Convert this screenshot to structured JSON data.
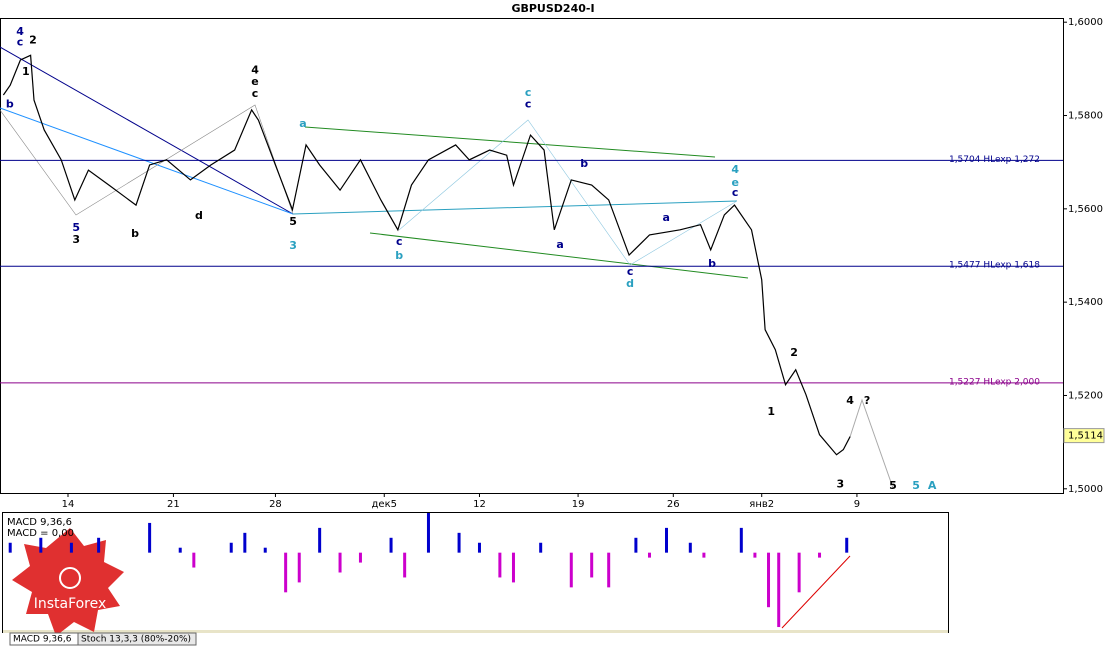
{
  "chart_data": {
    "type": "line",
    "title": "GBPUSD240-I",
    "color": "#000000",
    "xlim": [
      0,
      312.6
    ],
    "ylim": [
      1.4991,
      1.6009
    ],
    "yticks": [
      {
        "value": 1.6,
        "label": "1,6000"
      },
      {
        "value": 1.58,
        "label": "1,5800"
      },
      {
        "value": 1.56,
        "label": "1,5600"
      },
      {
        "value": 1.54,
        "label": "1,5400"
      },
      {
        "value": 1.52,
        "label": "1,5200"
      },
      {
        "value": 1.5,
        "label": "1,5000"
      }
    ],
    "xticks": [
      {
        "value": 20,
        "label": "14"
      },
      {
        "value": 51,
        "label": "21"
      },
      {
        "value": 81,
        "label": "28"
      },
      {
        "value": 113,
        "label": "дек5"
      },
      {
        "value": 141,
        "label": "12"
      },
      {
        "value": 170,
        "label": "19"
      },
      {
        "value": 198,
        "label": "26"
      },
      {
        "value": 224,
        "label": "янв2"
      },
      {
        "value": 252,
        "label": "9"
      }
    ],
    "x": [
      1,
      3,
      6,
      9,
      10,
      13,
      18,
      22,
      26,
      32,
      40,
      44,
      49,
      56,
      62,
      69,
      74,
      76,
      81,
      86,
      90,
      94,
      100,
      106,
      112,
      117,
      121,
      126,
      134,
      138,
      144,
      149,
      151,
      156,
      160,
      163,
      168,
      174,
      179,
      185,
      191,
      200,
      206,
      209,
      213,
      216,
      221,
      224,
      225,
      228,
      231,
      234,
      237,
      241,
      246,
      248,
      250
    ],
    "series": [
      {
        "name": "GBPUSD240-I",
        "color": "#000000",
        "values": [
          1.5844,
          1.5865,
          1.5919,
          1.5929,
          1.5833,
          1.5769,
          1.5705,
          1.5619,
          1.5683,
          1.5651,
          1.5608,
          1.5694,
          1.5705,
          1.5662,
          1.5694,
          1.5726,
          1.5812,
          1.579,
          1.5694,
          1.5598,
          1.5737,
          1.5694,
          1.564,
          1.5705,
          1.5619,
          1.5555,
          1.5651,
          1.5705,
          1.5737,
          1.5705,
          1.5726,
          1.5715,
          1.5651,
          1.5758,
          1.5726,
          1.5555,
          1.5662,
          1.5651,
          1.5619,
          1.5501,
          1.5544,
          1.5555,
          1.5566,
          1.5512,
          1.5587,
          1.5608,
          1.5555,
          1.5448,
          1.5341,
          1.5298,
          1.5223,
          1.5255,
          1.5202,
          1.5116,
          1.5073,
          1.5084,
          1.5112
        ]
      }
    ],
    "current": {
      "value": 1.5114,
      "label": "1,5114"
    },
    "levels": [
      {
        "value": 1.5704,
        "label": "1,5704 HLexp 1,272",
        "color": "#00008b"
      },
      {
        "value": 1.5477,
        "label": "1,5477 HLexp 1,618",
        "color": "#00008b"
      },
      {
        "value": 1.5227,
        "label": "1,5227 HLexp 2,000",
        "color": "#8b008b"
      }
    ],
    "annotations": [
      {
        "text": "4",
        "x": 5.9,
        "y": 1.5979,
        "color": "#00008b"
      },
      {
        "text": "c",
        "x": 5.9,
        "y": 1.5957,
        "color": "#00008b"
      },
      {
        "text": "2",
        "x": 9.7,
        "y": 1.5961,
        "color": "#000000"
      },
      {
        "text": "1",
        "x": 7.6,
        "y": 1.5893,
        "color": "#000000"
      },
      {
        "text": "b",
        "x": 2.9,
        "y": 1.5824,
        "color": "#00008b"
      },
      {
        "text": "5",
        "x": 22.4,
        "y": 1.5559,
        "color": "#00008b"
      },
      {
        "text": "3",
        "x": 22.4,
        "y": 1.5533,
        "color": "#000000"
      },
      {
        "text": "b",
        "x": 39.7,
        "y": 1.5546,
        "color": "#000000"
      },
      {
        "text": "d",
        "x": 58.5,
        "y": 1.5585,
        "color": "#000000"
      },
      {
        "text": "4",
        "x": 75,
        "y": 1.5897,
        "color": "#000000"
      },
      {
        "text": "e",
        "x": 75,
        "y": 1.5872,
        "color": "#000000"
      },
      {
        "text": "c",
        "x": 75,
        "y": 1.5846,
        "color": "#000000"
      },
      {
        "text": "5",
        "x": 86.2,
        "y": 1.5572,
        "color": "#000000"
      },
      {
        "text": "3",
        "x": 86.2,
        "y": 1.552,
        "color": "#2aa0c0"
      },
      {
        "text": "a",
        "x": 89.1,
        "y": 1.5782,
        "color": "#2aa0c0"
      },
      {
        "text": "c",
        "x": 117.4,
        "y": 1.5529,
        "color": "#00008b"
      },
      {
        "text": "b",
        "x": 117.4,
        "y": 1.5499,
        "color": "#2aa0c0"
      },
      {
        "text": "c",
        "x": 155.3,
        "y": 1.5848,
        "color": "#2aa0c0"
      },
      {
        "text": "c",
        "x": 155.3,
        "y": 1.5824,
        "color": "#00008b"
      },
      {
        "text": "a",
        "x": 164.7,
        "y": 1.5522,
        "color": "#00008b"
      },
      {
        "text": "b",
        "x": 171.8,
        "y": 1.5696,
        "color": "#00008b"
      },
      {
        "text": "c",
        "x": 185.3,
        "y": 1.5465,
        "color": "#00008b"
      },
      {
        "text": "d",
        "x": 185.3,
        "y": 1.5439,
        "color": "#2aa0c0"
      },
      {
        "text": "a",
        "x": 195.9,
        "y": 1.558,
        "color": "#00008b"
      },
      {
        "text": "b",
        "x": 209.4,
        "y": 1.5482,
        "color": "#00008b"
      },
      {
        "text": "4",
        "x": 216.2,
        "y": 1.5683,
        "color": "#2aa0c0"
      },
      {
        "text": "e",
        "x": 216.2,
        "y": 1.5655,
        "color": "#2aa0c0"
      },
      {
        "text": "c",
        "x": 216.2,
        "y": 1.5634,
        "color": "#00008b"
      },
      {
        "text": "1",
        "x": 226.8,
        "y": 1.5165,
        "color": "#000000"
      },
      {
        "text": "2",
        "x": 233.5,
        "y": 1.5291,
        "color": "#000000"
      },
      {
        "text": "3",
        "x": 247.1,
        "y": 1.5009,
        "color": "#000000"
      },
      {
        "text": "4",
        "x": 250,
        "y": 1.5188,
        "color": "#000000"
      },
      {
        "text": "?",
        "x": 255,
        "y": 1.5188,
        "color": "#000000"
      },
      {
        "text": "5",
        "x": 262.6,
        "y": 1.5006,
        "color": "#000000"
      },
      {
        "text": "5",
        "x": 269.4,
        "y": 1.5006,
        "color": "#2aa0c0"
      },
      {
        "text": "A",
        "x": 274.1,
        "y": 1.5006,
        "color": "#2aa0c0"
      }
    ],
    "macd": {
      "label": "MACD 9,36,6",
      "value_label": "MACD = 0,00",
      "color": "#0000cd",
      "neg_color": "#cc00cc",
      "ylim": [
        -0.0078,
        0.0039
      ],
      "x": [
        3,
        12,
        21,
        29,
        44,
        53,
        57,
        68,
        72,
        78,
        84,
        88,
        94,
        100,
        106,
        115,
        119,
        126,
        135,
        141,
        147,
        151,
        159,
        168,
        174,
        179,
        187,
        191,
        196,
        203,
        207,
        218,
        222,
        226,
        229,
        235,
        241,
        249
      ],
      "values": [
        0.001,
        0.0015,
        0.001,
        0.0015,
        0.003,
        0.0005,
        -0.0015,
        0.001,
        0.002,
        0.0005,
        -0.004,
        -0.003,
        0.0025,
        -0.002,
        -0.001,
        0.0015,
        -0.0025,
        0.004,
        0.002,
        0.001,
        -0.0025,
        -0.003,
        0.001,
        -0.0035,
        -0.0025,
        -0.0035,
        0.0015,
        -0.0005,
        0.0025,
        0.001,
        -0.0005,
        0.0025,
        -0.0005,
        -0.0055,
        -0.0075,
        -0.004,
        -0.0005,
        0.0015
      ]
    },
    "tabs": [
      "MACD 9,36,6",
      "Stoch 13,3,3 (80%-20%)"
    ],
    "logo": "InstaForex"
  }
}
